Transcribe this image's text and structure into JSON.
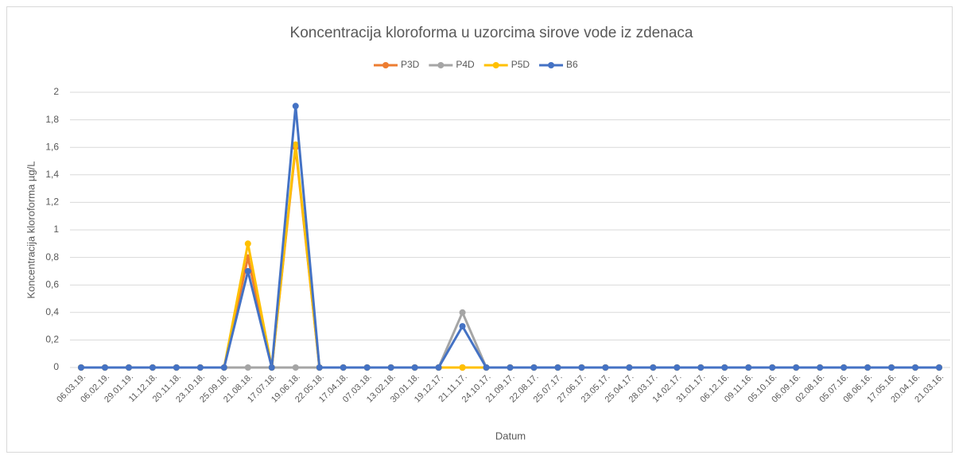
{
  "chart_data": {
    "type": "line",
    "title": "Koncentracija kloroforma u uzorcima sirove vode iz zdenaca",
    "x_label": "Datum",
    "y_label": "Koncentracija kloroforma µg/L",
    "categories": [
      "06.03.19.",
      "06.02.19.",
      "29.01.19.",
      "11.12.18.",
      "20.11.18.",
      "23.10.18.",
      "25.09.18.",
      "21.08.18.",
      "17.07.18.",
      "19.06.18.",
      "22.05.18.",
      "17.04.18.",
      "07.03.18.",
      "13.02.18.",
      "30.01.18.",
      "19.12.17.",
      "21.11.17.",
      "24.10.17.",
      "21.09.17.",
      "22.08.17.",
      "25.07.17.",
      "27.06.17.",
      "23.05.17.",
      "25.04.17.",
      "28.03.17.",
      "14.02.17.",
      "31.01.17.",
      "06.12.16.",
      "09.11.16.",
      "05.10.16.",
      "06.09.16.",
      "02.08.16.",
      "05.07.16.",
      "08.06.16.",
      "17.05.16.",
      "20.04.16.",
      "21.03.16."
    ],
    "series": [
      {
        "name": "P3D",
        "color": "#ED7D31",
        "values": [
          0,
          0,
          0,
          0,
          0,
          0,
          0,
          0.8,
          0,
          1.6,
          0,
          0,
          0,
          0,
          0,
          0,
          0,
          0,
          0,
          0,
          0,
          0,
          0,
          0,
          0,
          0,
          0,
          0,
          0,
          0,
          0,
          0,
          0,
          0,
          0,
          0,
          0
        ]
      },
      {
        "name": "P4D",
        "color": "#A5A5A5",
        "values": [
          0,
          0,
          0,
          0,
          0,
          0,
          0,
          0,
          0,
          0,
          0,
          0,
          0,
          0,
          0,
          0,
          0.4,
          0,
          0,
          0,
          0,
          0,
          0,
          0,
          0,
          0,
          0,
          0,
          0,
          0,
          0,
          0,
          0,
          0,
          0,
          0,
          0
        ]
      },
      {
        "name": "P5D",
        "color": "#FFC000",
        "values": [
          0,
          0,
          0,
          0,
          0,
          0,
          0,
          0.9,
          0,
          1.62,
          0,
          0,
          0,
          0,
          0,
          0,
          0,
          0,
          0,
          0,
          0,
          0,
          0,
          0,
          0,
          0,
          0,
          0,
          0,
          0,
          0,
          0,
          0,
          0,
          0,
          0,
          0
        ]
      },
      {
        "name": "B6",
        "color": "#4472C4",
        "values": [
          0,
          0,
          0,
          0,
          0,
          0,
          0,
          0.7,
          0,
          1.9,
          0,
          0,
          0,
          0,
          0,
          0,
          0.3,
          0,
          0,
          0,
          0,
          0,
          0,
          0,
          0,
          0,
          0,
          0,
          0,
          0,
          0,
          0,
          0,
          0,
          0,
          0,
          0
        ]
      }
    ],
    "ylim": [
      0,
      2
    ],
    "yticks": [
      0,
      {
        "value": 0.2,
        "label": "0,2"
      },
      {
        "value": 0.4,
        "label": "0,4"
      },
      {
        "value": 0.6,
        "label": "0,6"
      },
      {
        "value": 0.8,
        "label": "0,8"
      },
      1,
      {
        "value": 1.2,
        "label": "1,2"
      },
      {
        "value": 1.4,
        "label": "1,4"
      },
      {
        "value": 1.6,
        "label": "1,6"
      },
      {
        "value": 1.8,
        "label": "1,8"
      },
      2
    ],
    "grid": true,
    "legend": "top"
  }
}
